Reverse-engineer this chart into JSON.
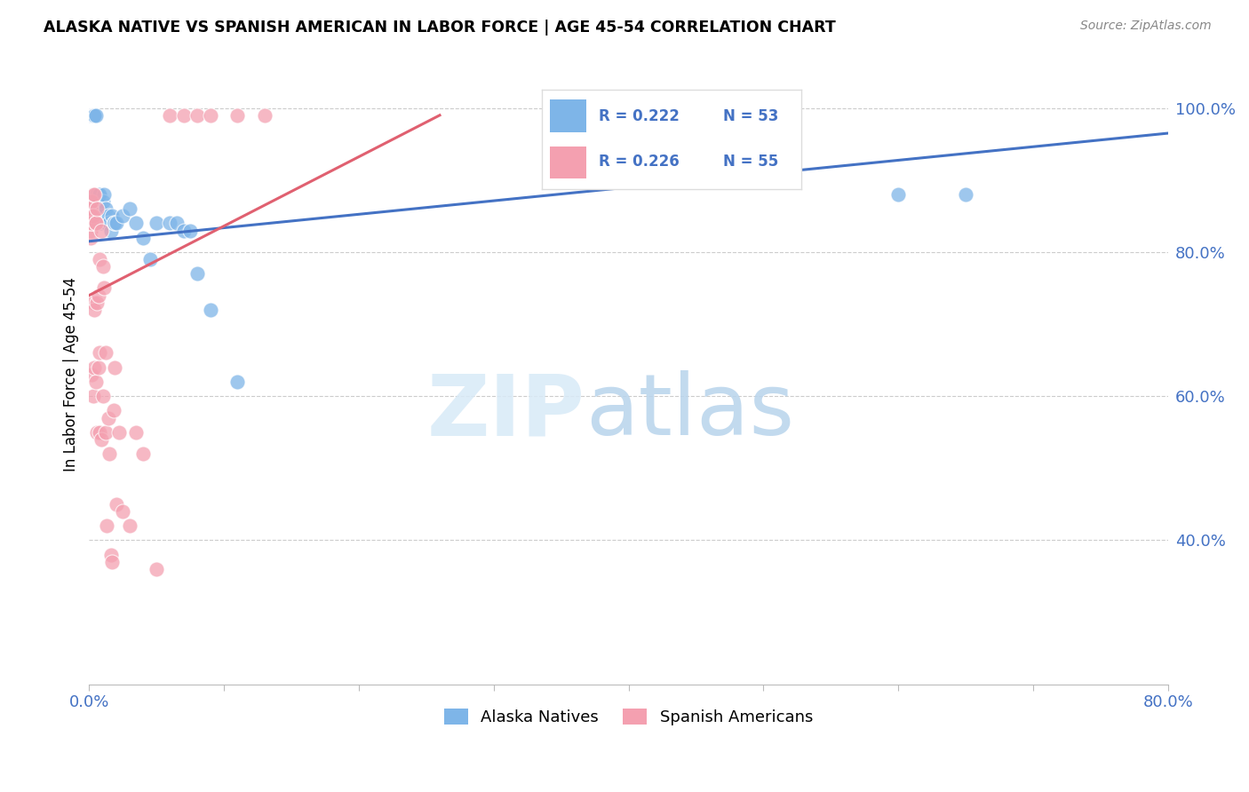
{
  "title": "ALASKA NATIVE VS SPANISH AMERICAN IN LABOR FORCE | AGE 45-54 CORRELATION CHART",
  "source": "Source: ZipAtlas.com",
  "ylabel": "In Labor Force | Age 45-54",
  "yticks": [
    "40.0%",
    "60.0%",
    "80.0%",
    "100.0%"
  ],
  "ytick_vals": [
    0.4,
    0.6,
    0.8,
    1.0
  ],
  "xlim": [
    0.0,
    0.8
  ],
  "ylim": [
    0.2,
    1.06
  ],
  "legend_r_blue": "R = 0.222",
  "legend_n_blue": "N = 53",
  "legend_r_pink": "R = 0.226",
  "legend_n_pink": "N = 55",
  "legend_label_blue": "Alaska Natives",
  "legend_label_pink": "Spanish Americans",
  "color_blue": "#7EB5E8",
  "color_pink": "#F4A0B0",
  "color_blue_line": "#4472C4",
  "color_pink_line": "#E06070",
  "color_blue_text": "#4472C4",
  "blue_line_x0": 0.0,
  "blue_line_y0": 0.815,
  "blue_line_x1": 0.8,
  "blue_line_y1": 0.965,
  "pink_line_x0": 0.0,
  "pink_line_y0": 0.74,
  "pink_line_x1": 0.26,
  "pink_line_y1": 0.99,
  "alaska_x": [
    0.001,
    0.001,
    0.001,
    0.001,
    0.001,
    0.002,
    0.002,
    0.003,
    0.003,
    0.003,
    0.004,
    0.004,
    0.004,
    0.005,
    0.005,
    0.005,
    0.006,
    0.006,
    0.007,
    0.007,
    0.007,
    0.008,
    0.008,
    0.009,
    0.009,
    0.01,
    0.01,
    0.011,
    0.012,
    0.012,
    0.013,
    0.014,
    0.015,
    0.016,
    0.017,
    0.018,
    0.019,
    0.02,
    0.025,
    0.03,
    0.035,
    0.04,
    0.045,
    0.05,
    0.06,
    0.065,
    0.07,
    0.075,
    0.08,
    0.09,
    0.11,
    0.6,
    0.65
  ],
  "alaska_y": [
    0.99,
    0.99,
    0.99,
    0.99,
    0.99,
    0.99,
    0.99,
    0.99,
    0.99,
    0.99,
    0.99,
    0.99,
    0.99,
    0.99,
    0.87,
    0.85,
    0.88,
    0.86,
    0.88,
    0.86,
    0.85,
    0.88,
    0.86,
    0.85,
    0.84,
    0.87,
    0.85,
    0.88,
    0.86,
    0.84,
    0.84,
    0.85,
    0.84,
    0.83,
    0.85,
    0.84,
    0.84,
    0.84,
    0.85,
    0.86,
    0.84,
    0.82,
    0.79,
    0.84,
    0.84,
    0.84,
    0.83,
    0.83,
    0.77,
    0.72,
    0.62,
    0.88,
    0.88
  ],
  "spanish_x": [
    0.001,
    0.001,
    0.001,
    0.001,
    0.001,
    0.001,
    0.002,
    0.002,
    0.002,
    0.002,
    0.003,
    0.003,
    0.003,
    0.003,
    0.004,
    0.004,
    0.004,
    0.005,
    0.005,
    0.005,
    0.006,
    0.006,
    0.006,
    0.007,
    0.007,
    0.008,
    0.008,
    0.008,
    0.009,
    0.009,
    0.01,
    0.01,
    0.011,
    0.012,
    0.012,
    0.013,
    0.014,
    0.015,
    0.016,
    0.017,
    0.018,
    0.019,
    0.02,
    0.022,
    0.025,
    0.03,
    0.035,
    0.04,
    0.05,
    0.06,
    0.07,
    0.08,
    0.09,
    0.11,
    0.13
  ],
  "spanish_y": [
    0.87,
    0.86,
    0.85,
    0.84,
    0.83,
    0.82,
    0.87,
    0.85,
    0.84,
    0.63,
    0.88,
    0.85,
    0.73,
    0.6,
    0.88,
    0.72,
    0.64,
    0.84,
    0.62,
    0.84,
    0.86,
    0.73,
    0.55,
    0.74,
    0.64,
    0.79,
    0.66,
    0.55,
    0.54,
    0.83,
    0.78,
    0.6,
    0.75,
    0.66,
    0.55,
    0.42,
    0.57,
    0.52,
    0.38,
    0.37,
    0.58,
    0.64,
    0.45,
    0.55,
    0.44,
    0.42,
    0.55,
    0.52,
    0.36,
    0.99,
    0.99,
    0.99,
    0.99,
    0.99,
    0.99
  ]
}
